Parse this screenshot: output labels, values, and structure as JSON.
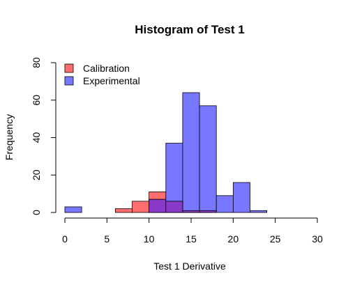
{
  "chart_data": {
    "type": "bar",
    "title": "Histogram of Test 1",
    "xlabel": "Test 1 Derivative",
    "ylabel": "Frequency",
    "xlim": [
      0,
      30
    ],
    "ylim": [
      0,
      80
    ],
    "x_ticks": [
      0,
      5,
      10,
      15,
      20,
      25,
      30
    ],
    "y_ticks": [
      0,
      20,
      40,
      60,
      80
    ],
    "bin_edges": [
      0,
      2,
      4,
      6,
      8,
      10,
      12,
      14,
      16,
      18,
      20,
      22,
      24
    ],
    "grid": false,
    "legend_position": "top-left",
    "series": [
      {
        "name": "Calibration",
        "color": "#ff6e6e",
        "values": [
          0,
          0,
          0,
          2,
          6,
          11,
          6,
          1,
          1,
          0,
          0,
          0
        ]
      },
      {
        "name": "Experimental",
        "color": "#7777ff",
        "values": [
          3,
          0,
          0,
          0,
          0,
          7,
          37,
          64,
          57,
          9,
          16,
          1
        ]
      }
    ],
    "overlap_color": "#8a3ac8"
  }
}
